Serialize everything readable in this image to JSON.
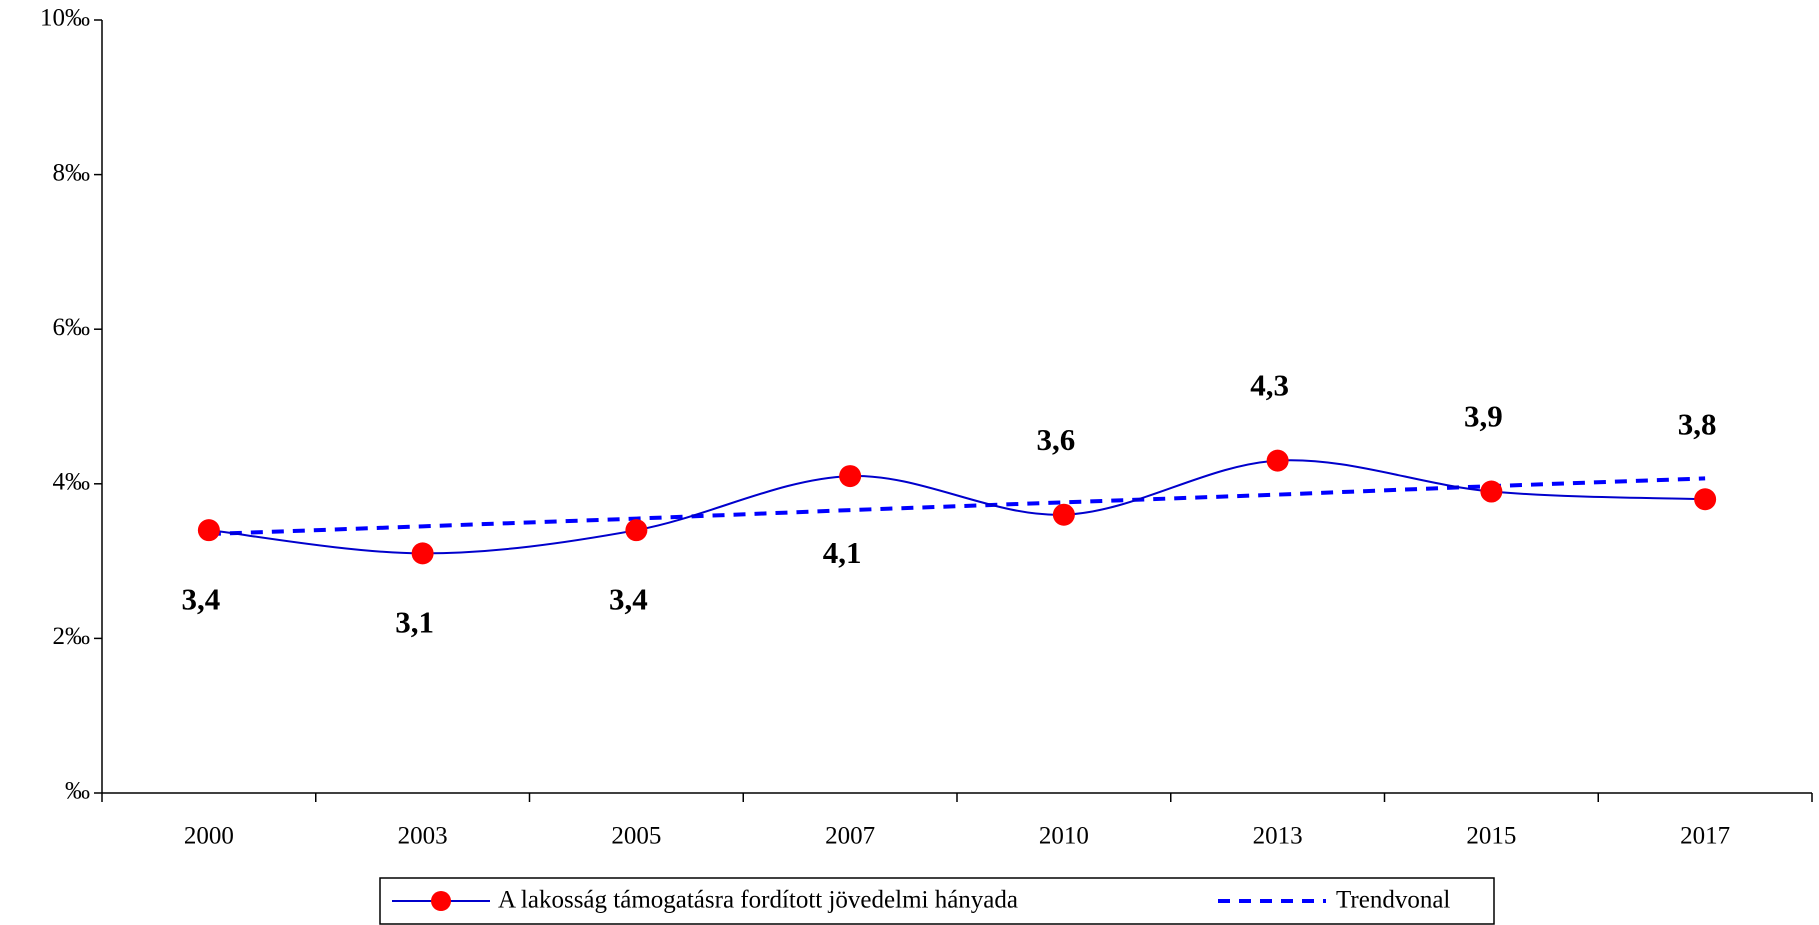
{
  "chart_data": {
    "type": "line",
    "categories": [
      "2000",
      "2003",
      "2005",
      "2007",
      "2010",
      "2013",
      "2015",
      "2017"
    ],
    "series": [
      {
        "name": "A lakosság támogatásra fordított jövedelmi hányada",
        "color": "#0000cc",
        "marker_color": "#ff0000",
        "values": [
          3.4,
          3.1,
          3.4,
          4.1,
          3.6,
          4.3,
          3.9,
          3.8
        ],
        "value_labels": [
          "3,4",
          "3,1",
          "3,4",
          "4,1",
          "3,6",
          "4,3",
          "3,9",
          "3,8"
        ]
      },
      {
        "name": "Trendvonal",
        "color": "#0000ff",
        "dashed": true,
        "values": [
          3.35,
          3.45,
          3.55,
          3.66,
          3.76,
          3.86,
          3.97,
          4.07
        ]
      }
    ],
    "ylim": [
      0,
      10
    ],
    "yticks": [
      {
        "value": 0,
        "label": "‰"
      },
      {
        "value": 2,
        "label": "2‰"
      },
      {
        "value": 4,
        "label": "4‰"
      },
      {
        "value": 6,
        "label": "6‰"
      },
      {
        "value": 8,
        "label": "8‰"
      },
      {
        "value": 10,
        "label": "10‰"
      }
    ],
    "legend": "bottom"
  }
}
